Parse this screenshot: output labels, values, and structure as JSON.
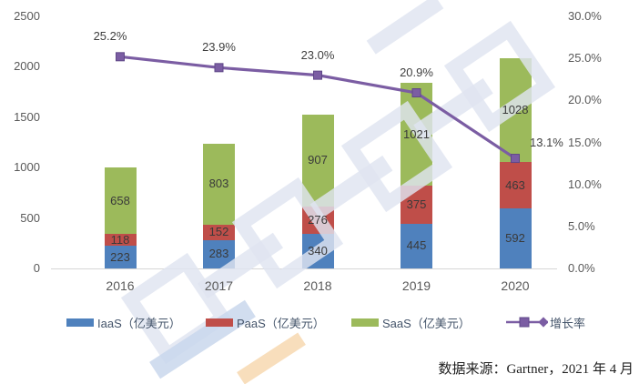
{
  "chart_data": {
    "type": "bar",
    "subtype": "stacked-bar-with-line",
    "categories": [
      "2016",
      "2017",
      "2018",
      "2019",
      "2020"
    ],
    "series": [
      {
        "name": "IaaS（亿美元）",
        "type": "bar",
        "color": "#4f81bd",
        "values": [
          223,
          283,
          340,
          445,
          592
        ]
      },
      {
        "name": "PaaS（亿美元）",
        "type": "bar",
        "color": "#bf4e49",
        "values": [
          118,
          152,
          276,
          375,
          463
        ]
      },
      {
        "name": "SaaS（亿美元）",
        "type": "bar",
        "color": "#9cba5b",
        "values": [
          658,
          803,
          907,
          1021,
          1028
        ]
      },
      {
        "name": "增长率",
        "type": "line",
        "color": "#7b5da3",
        "values": [
          25.2,
          23.9,
          23.0,
          20.9,
          13.1
        ],
        "point_labels": [
          "25.2%",
          "23.9%",
          "23.0%",
          "20.9%",
          "13.1%"
        ]
      }
    ],
    "left_axis": {
      "max": 2500,
      "ticks": [
        {
          "label": "2500",
          "value": 2500
        },
        {
          "label": "2000",
          "value": 2000
        },
        {
          "label": "1500",
          "value": 1500
        },
        {
          "label": "1000",
          "value": 1000
        },
        {
          "label": "500",
          "value": 500
        },
        {
          "label": "0",
          "value": 0
        }
      ]
    },
    "right_axis": {
      "max": 30,
      "ticks": [
        {
          "label": "30.0%",
          "value": 30
        },
        {
          "label": "25.0%",
          "value": 25
        },
        {
          "label": "20.0%",
          "value": 20
        },
        {
          "label": "15.0%",
          "value": 15
        },
        {
          "label": "10.0%",
          "value": 10
        },
        {
          "label": "5.0%",
          "value": 5
        },
        {
          "label": "0.0%",
          "value": 0
        }
      ]
    },
    "grid": false,
    "legend_position": "bottom"
  },
  "legend": {
    "items": [
      {
        "label": "IaaS（亿美元）",
        "color": "#4f81bd",
        "marker": "square-swatch"
      },
      {
        "label": "PaaS（亿美元）",
        "color": "#bf4e49",
        "marker": "square-swatch"
      },
      {
        "label": "SaaS（亿美元）",
        "color": "#9cba5b",
        "marker": "square-swatch"
      },
      {
        "label": "增长率",
        "color": "#7b5da3",
        "marker": "line-with-square-marker"
      }
    ]
  },
  "source_note": "数据来源：Gartner，2021 年 4 月",
  "watermark": {
    "description": "large light-blue diagonal emblem watermark across chart"
  }
}
